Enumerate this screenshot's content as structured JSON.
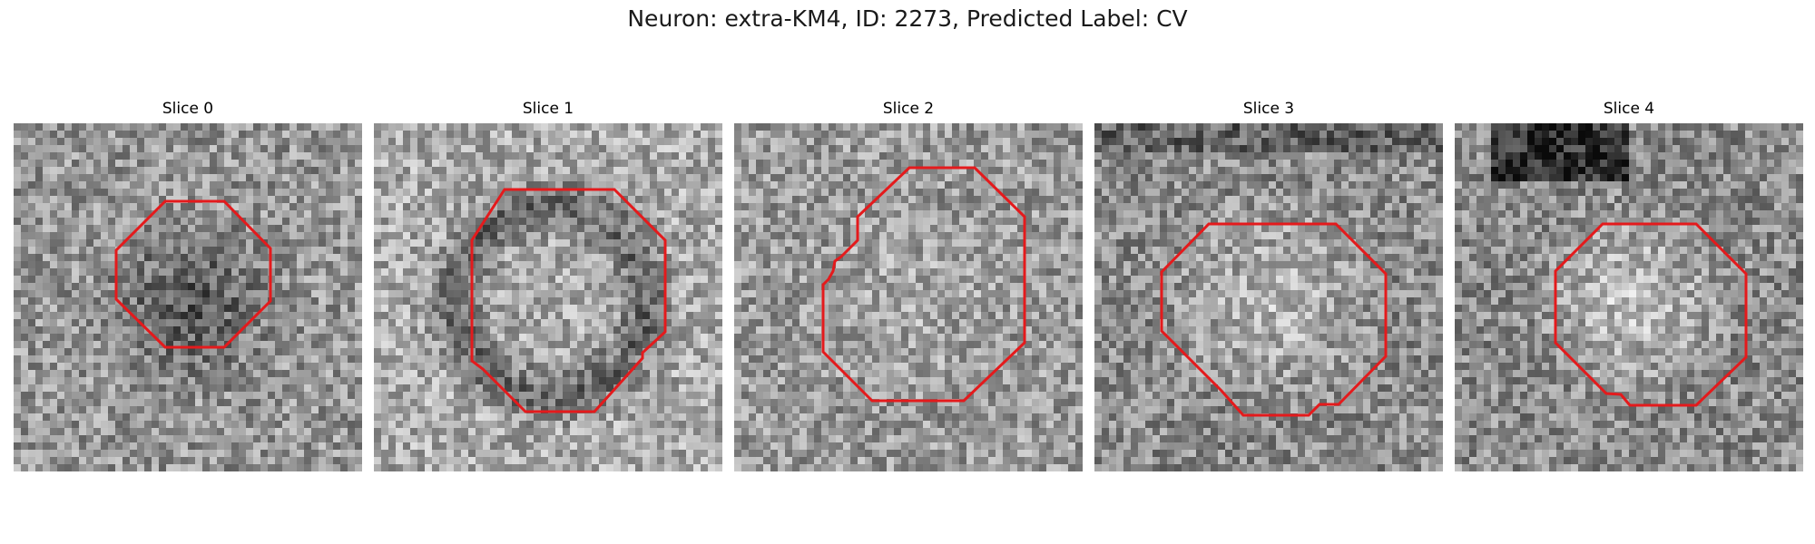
{
  "figure": {
    "title": "Neuron: extra-KM4, ID: 2273, Predicted Label: CV"
  },
  "panels": [
    {
      "title": "Slice 0",
      "seed": 11,
      "contrast": "dark_center"
    },
    {
      "title": "Slice 1",
      "seed": 23,
      "contrast": "ring"
    },
    {
      "title": "Slice 2",
      "seed": 37,
      "contrast": "flat"
    },
    {
      "title": "Slice 3",
      "seed": 41,
      "contrast": "bright_center"
    },
    {
      "title": "Slice 4",
      "seed": 59,
      "contrast": "bright_center_dark_top"
    }
  ],
  "colors": {
    "contour": "#e41a1c",
    "background": "#ffffff"
  }
}
